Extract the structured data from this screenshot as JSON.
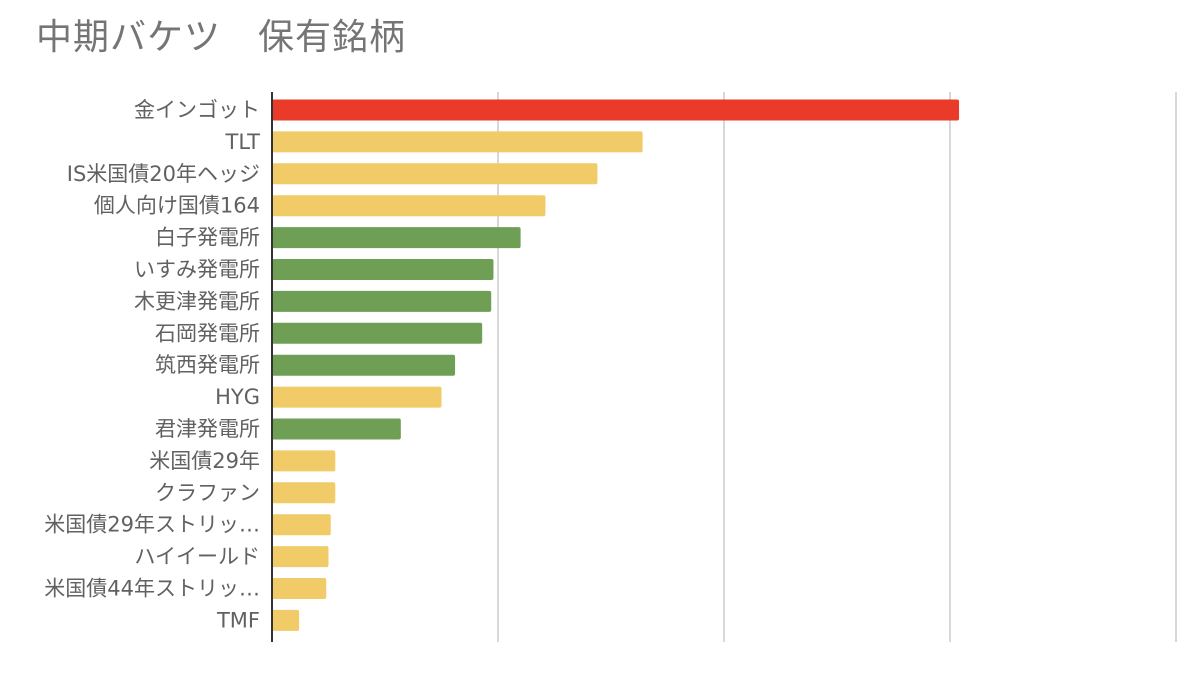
{
  "title": "中期バケツ　保有銘柄",
  "chart_data": {
    "type": "bar",
    "orientation": "horizontal",
    "title": "中期バケツ　保有銘柄",
    "xlabel": "",
    "ylabel": "",
    "grid": true,
    "legend": "none",
    "xlim": [
      0,
      4
    ],
    "categories": [
      "金インゴット",
      "TLT",
      "IS米国債20年ヘッジ",
      "個人向け国債164",
      "白子発電所",
      "いすみ発電所",
      "木更津発電所",
      "石岡発電所",
      "筑西発電所",
      "HYG",
      "君津発電所",
      "米国債29年",
      "クラファン",
      "米国債29年ストリッ…",
      "ハイイールド",
      "米国債44年ストリッ…",
      "TMF"
    ],
    "values": [
      3.04,
      1.64,
      1.44,
      1.21,
      1.1,
      0.98,
      0.97,
      0.93,
      0.81,
      0.75,
      0.57,
      0.28,
      0.28,
      0.26,
      0.25,
      0.24,
      0.12
    ],
    "bar_colors": [
      "#EA3B2A",
      "#F1CB67",
      "#F1CB67",
      "#F1CB67",
      "#6E9F55",
      "#6E9F55",
      "#6E9F55",
      "#6E9F55",
      "#6E9F55",
      "#F1CB67",
      "#6E9F55",
      "#F1CB67",
      "#F1CB67",
      "#F1CB67",
      "#F1CB67",
      "#F1CB67",
      "#F1CB67"
    ]
  },
  "colors": {
    "gold": "#EA3B2A",
    "bond": "#F1CB67",
    "power_plant": "#6E9F55",
    "grid": "#CCCCCC",
    "axis": "#333333",
    "label": "#616161",
    "title": "#757575"
  }
}
